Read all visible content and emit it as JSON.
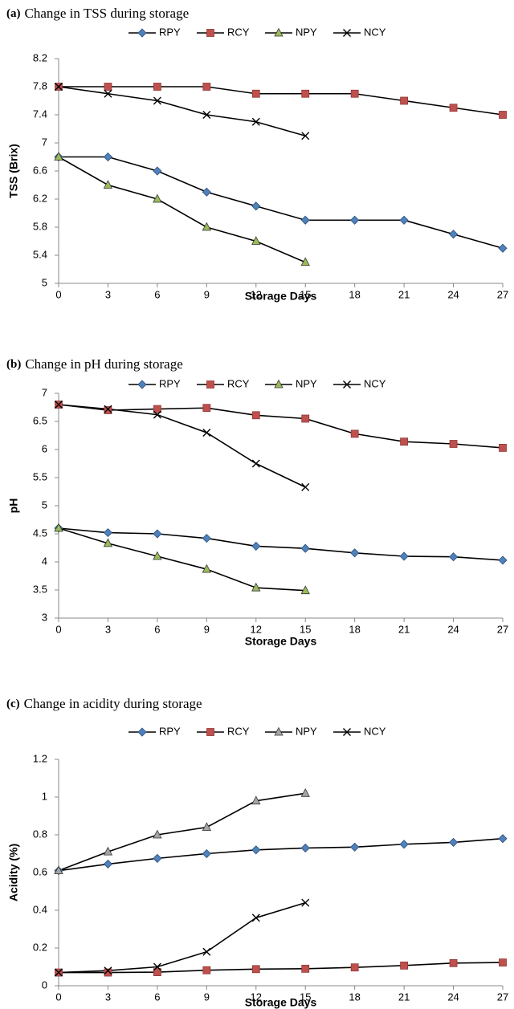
{
  "chart_data": [
    {
      "type": "line",
      "panel_label": "(a)",
      "title": "Change in TSS during storage",
      "xlabel": "Storage Days",
      "ylabel": "TSS (Brix)",
      "x": [
        0,
        3,
        6,
        9,
        12,
        15,
        18,
        21,
        24,
        27
      ],
      "xlim": [
        0,
        27
      ],
      "xticks": [
        0,
        3,
        6,
        9,
        12,
        15,
        18,
        21,
        24,
        27
      ],
      "ylim": [
        5,
        8.2
      ],
      "yticks": [
        5,
        5.4,
        5.8,
        6.2,
        6.6,
        7,
        7.4,
        7.8,
        8.2
      ],
      "grid": false,
      "line_color": "#000000",
      "series": [
        {
          "name": "RPY",
          "color": "#4f81bd",
          "marker": "diamond",
          "values": [
            6.8,
            6.8,
            6.6,
            6.3,
            6.1,
            5.9,
            5.9,
            5.9,
            5.7,
            5.5
          ]
        },
        {
          "name": "RCY",
          "color": "#c0504d",
          "marker": "square",
          "values": [
            7.8,
            7.8,
            7.8,
            7.8,
            7.7,
            7.7,
            7.7,
            7.6,
            7.5,
            7.4
          ]
        },
        {
          "name": "NPY",
          "color": "#9bbb59",
          "marker": "triangle",
          "values": [
            6.8,
            6.4,
            6.2,
            5.8,
            5.6,
            5.3,
            null,
            null,
            null,
            null
          ]
        },
        {
          "name": "NCY",
          "color": "#000000",
          "marker": "x",
          "values": [
            7.8,
            7.7,
            7.6,
            7.4,
            7.3,
            7.1,
            null,
            null,
            null,
            null
          ]
        }
      ]
    },
    {
      "type": "line",
      "panel_label": "(b)",
      "title": "Change in pH during storage",
      "xlabel": "Storage Days",
      "ylabel": "pH",
      "x": [
        0,
        3,
        6,
        9,
        12,
        15,
        18,
        21,
        24,
        27
      ],
      "xlim": [
        0,
        27
      ],
      "xticks": [
        0,
        3,
        6,
        9,
        12,
        15,
        18,
        21,
        24,
        27
      ],
      "ylim": [
        3,
        7
      ],
      "yticks": [
        3,
        3.5,
        4,
        4.5,
        5,
        5.5,
        6,
        6.5,
        7
      ],
      "grid": false,
      "line_color": "#000000",
      "series": [
        {
          "name": "RPY",
          "color": "#4f81bd",
          "marker": "diamond",
          "values": [
            4.6,
            4.52,
            4.5,
            4.42,
            4.28,
            4.24,
            4.16,
            4.1,
            4.09,
            4.03
          ]
        },
        {
          "name": "RCY",
          "color": "#c0504d",
          "marker": "square",
          "values": [
            6.8,
            6.7,
            6.72,
            6.74,
            6.61,
            6.55,
            6.28,
            6.14,
            6.1,
            6.03
          ]
        },
        {
          "name": "NPY",
          "color": "#9bbb59",
          "marker": "triangle",
          "values": [
            4.6,
            4.33,
            4.1,
            3.87,
            3.54,
            3.49,
            null,
            null,
            null,
            null
          ]
        },
        {
          "name": "NCY",
          "color": "#000000",
          "marker": "x",
          "values": [
            6.8,
            6.72,
            6.62,
            6.3,
            5.75,
            5.33,
            null,
            null,
            null,
            null
          ]
        }
      ]
    },
    {
      "type": "line",
      "panel_label": "(c)",
      "title": "Change in acidity during storage",
      "xlabel": "Storage Days",
      "ylabel": "Acidity (%)",
      "x": [
        0,
        3,
        6,
        9,
        12,
        15,
        18,
        21,
        24,
        27
      ],
      "xlim": [
        0,
        27
      ],
      "xticks": [
        0,
        3,
        6,
        9,
        12,
        15,
        18,
        21,
        24,
        27
      ],
      "ylim": [
        0,
        1.2
      ],
      "yticks": [
        0,
        0.2,
        0.4,
        0.6,
        0.8,
        1,
        1.2
      ],
      "grid": false,
      "line_color": "#000000",
      "series": [
        {
          "name": "RPY",
          "color": "#4f81bd",
          "marker": "diamond",
          "values": [
            0.61,
            0.645,
            0.675,
            0.7,
            0.72,
            0.73,
            0.735,
            0.75,
            0.76,
            0.78
          ]
        },
        {
          "name": "RCY",
          "color": "#c0504d",
          "marker": "square",
          "values": [
            0.07,
            0.07,
            0.072,
            0.082,
            0.088,
            0.09,
            0.097,
            0.107,
            0.12,
            0.123
          ]
        },
        {
          "name": "NPY",
          "color": "#a5a5a5",
          "marker": "triangle",
          "values": [
            0.61,
            0.71,
            0.8,
            0.84,
            0.98,
            1.02,
            null,
            null,
            null,
            null
          ]
        },
        {
          "name": "NCY",
          "color": "#000000",
          "marker": "x",
          "values": [
            0.07,
            0.08,
            0.1,
            0.18,
            0.36,
            0.44,
            null,
            null,
            null,
            null
          ]
        }
      ]
    }
  ]
}
